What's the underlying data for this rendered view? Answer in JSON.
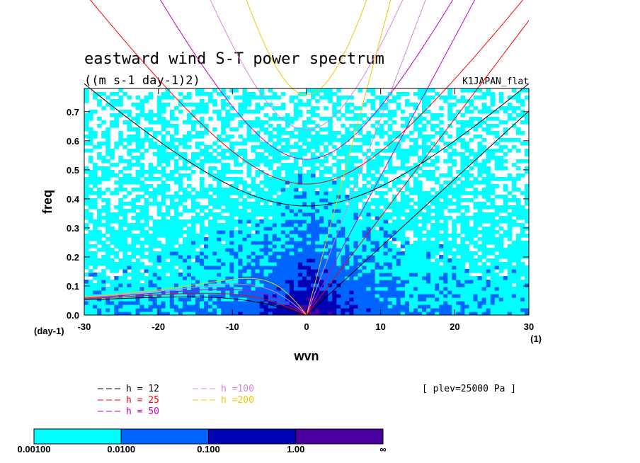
{
  "chart_data": {
    "type": "heatmap",
    "title": "eastward wind S-T power spectrum",
    "subtitle": "((m s-1 day-1)2)",
    "dataset_label": "K1JAPAN_flat",
    "level_label": "[ plev=25000 Pa ]",
    "xlabel": "wvn",
    "ylabel": "freq",
    "x_unit": "(1)",
    "y_unit": "(day-1)",
    "xlim": [
      -30,
      30
    ],
    "ylim": [
      0,
      0.78
    ],
    "x_ticks": [
      "-30",
      "-20",
      "-10",
      "0",
      "10",
      "20",
      "30"
    ],
    "y_ticks": [
      "0.0",
      "0.1",
      "0.2",
      "0.3",
      "0.4",
      "0.5",
      "0.6",
      "0.7"
    ],
    "color_levels": [
      "0.00100",
      "0.0100",
      "0.100",
      "1.00",
      "∞"
    ],
    "colors": [
      "#00ffff",
      "#0064ff",
      "#0000b4",
      "#4b00a0"
    ],
    "dispersion_curves": [
      {
        "name": "h = 12",
        "color": "#000000",
        "h": 12
      },
      {
        "name": "h = 25",
        "color": "#ff0000",
        "h": 25
      },
      {
        "name": "h = 50",
        "color": "#c800c8",
        "h": 50
      },
      {
        "name": "h =100",
        "color": "#dc82dc",
        "h": 100
      },
      {
        "name": "h =200",
        "color": "#f0c800",
        "h": 200
      }
    ]
  }
}
